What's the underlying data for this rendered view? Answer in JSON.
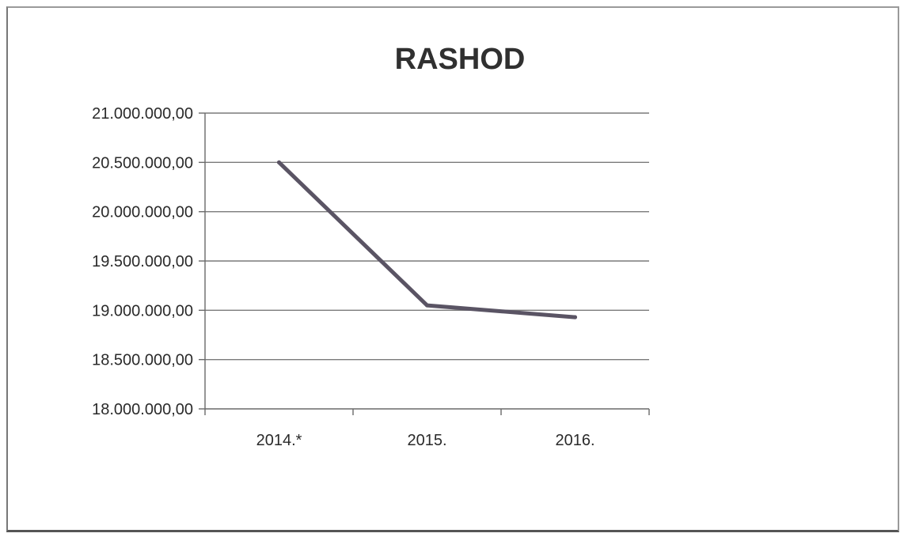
{
  "chart_data": {
    "type": "line",
    "title": "RASHOD",
    "categories": [
      "2014.*",
      "2015.",
      "2016."
    ],
    "series": [
      {
        "values": [
          20500000,
          19050000,
          18930000
        ]
      }
    ],
    "ylim": [
      18000000,
      21000000
    ],
    "y_ticks": [
      21000000,
      20500000,
      20000000,
      19500000,
      19000000,
      18500000,
      18000000
    ],
    "y_tick_labels": [
      "21.000.000,00",
      "20.500.000,00",
      "20.000.000,00",
      "19.500.000,00",
      "19.000.000,00",
      "18.500.000,00",
      "18.000.000,00"
    ],
    "grid": true,
    "legend": "none",
    "colors": {
      "line": "#5a5464",
      "grid": "#7a7a7a",
      "axis": "#6a6a6a",
      "frame": "#8a8a8a"
    }
  }
}
